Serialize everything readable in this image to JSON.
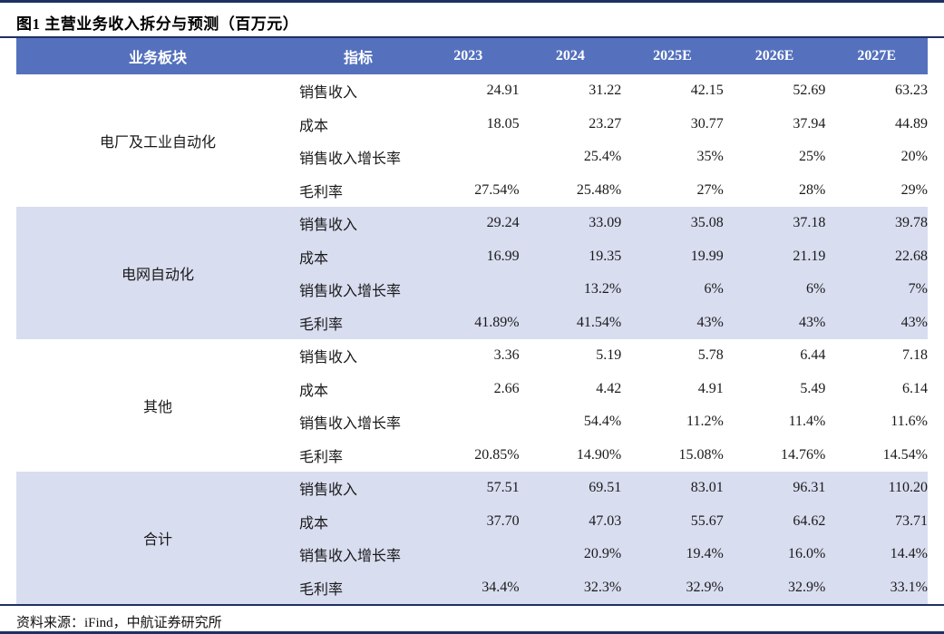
{
  "figure": {
    "title": "图1 主营业务收入拆分与预测（百万元）",
    "source": "资料来源：iFind，中航证券研究所"
  },
  "colors": {
    "header_bg": "#5571BE",
    "header_text": "#FFFFFF",
    "band_bg": "#D9DDF0",
    "rule": "#1F3063",
    "body_text": "#1A1A1A"
  },
  "chart_data": {
    "type": "table",
    "columns": [
      "业务板块",
      "指标",
      "2023",
      "2024",
      "2025E",
      "2026E",
      "2027E"
    ],
    "groups": [
      {
        "segment": "电厂及工业自动化",
        "rows": [
          {
            "metric": "销售收入",
            "values": [
              "24.91",
              "31.22",
              "42.15",
              "52.69",
              "63.23"
            ]
          },
          {
            "metric": "成本",
            "values": [
              "18.05",
              "23.27",
              "30.77",
              "37.94",
              "44.89"
            ]
          },
          {
            "metric": "销售收入增长率",
            "values": [
              "",
              "25.4%",
              "35%",
              "25%",
              "20%"
            ]
          },
          {
            "metric": "毛利率",
            "values": [
              "27.54%",
              "25.48%",
              "27%",
              "28%",
              "29%"
            ]
          }
        ]
      },
      {
        "segment": "电网自动化",
        "rows": [
          {
            "metric": "销售收入",
            "values": [
              "29.24",
              "33.09",
              "35.08",
              "37.18",
              "39.78"
            ]
          },
          {
            "metric": "成本",
            "values": [
              "16.99",
              "19.35",
              "19.99",
              "21.19",
              "22.68"
            ]
          },
          {
            "metric": "销售收入增长率",
            "values": [
              "",
              "13.2%",
              "6%",
              "6%",
              "7%"
            ]
          },
          {
            "metric": "毛利率",
            "values": [
              "41.89%",
              "41.54%",
              "43%",
              "43%",
              "43%"
            ]
          }
        ]
      },
      {
        "segment": "其他",
        "rows": [
          {
            "metric": "销售收入",
            "values": [
              "3.36",
              "5.19",
              "5.78",
              "6.44",
              "7.18"
            ]
          },
          {
            "metric": "成本",
            "values": [
              "2.66",
              "4.42",
              "4.91",
              "5.49",
              "6.14"
            ]
          },
          {
            "metric": "销售收入增长率",
            "values": [
              "",
              "54.4%",
              "11.2%",
              "11.4%",
              "11.6%"
            ]
          },
          {
            "metric": "毛利率",
            "values": [
              "20.85%",
              "14.90%",
              "15.08%",
              "14.76%",
              "14.54%"
            ]
          }
        ]
      },
      {
        "segment": "合计",
        "rows": [
          {
            "metric": "销售收入",
            "values": [
              "57.51",
              "69.51",
              "83.01",
              "96.31",
              "110.20"
            ]
          },
          {
            "metric": "成本",
            "values": [
              "37.70",
              "47.03",
              "55.67",
              "64.62",
              "73.71"
            ]
          },
          {
            "metric": "销售收入增长率",
            "values": [
              "",
              "20.9%",
              "19.4%",
              "16.0%",
              "14.4%"
            ]
          },
          {
            "metric": "毛利率",
            "values": [
              "34.4%",
              "32.3%",
              "32.9%",
              "32.9%",
              "33.1%"
            ]
          }
        ]
      }
    ]
  }
}
